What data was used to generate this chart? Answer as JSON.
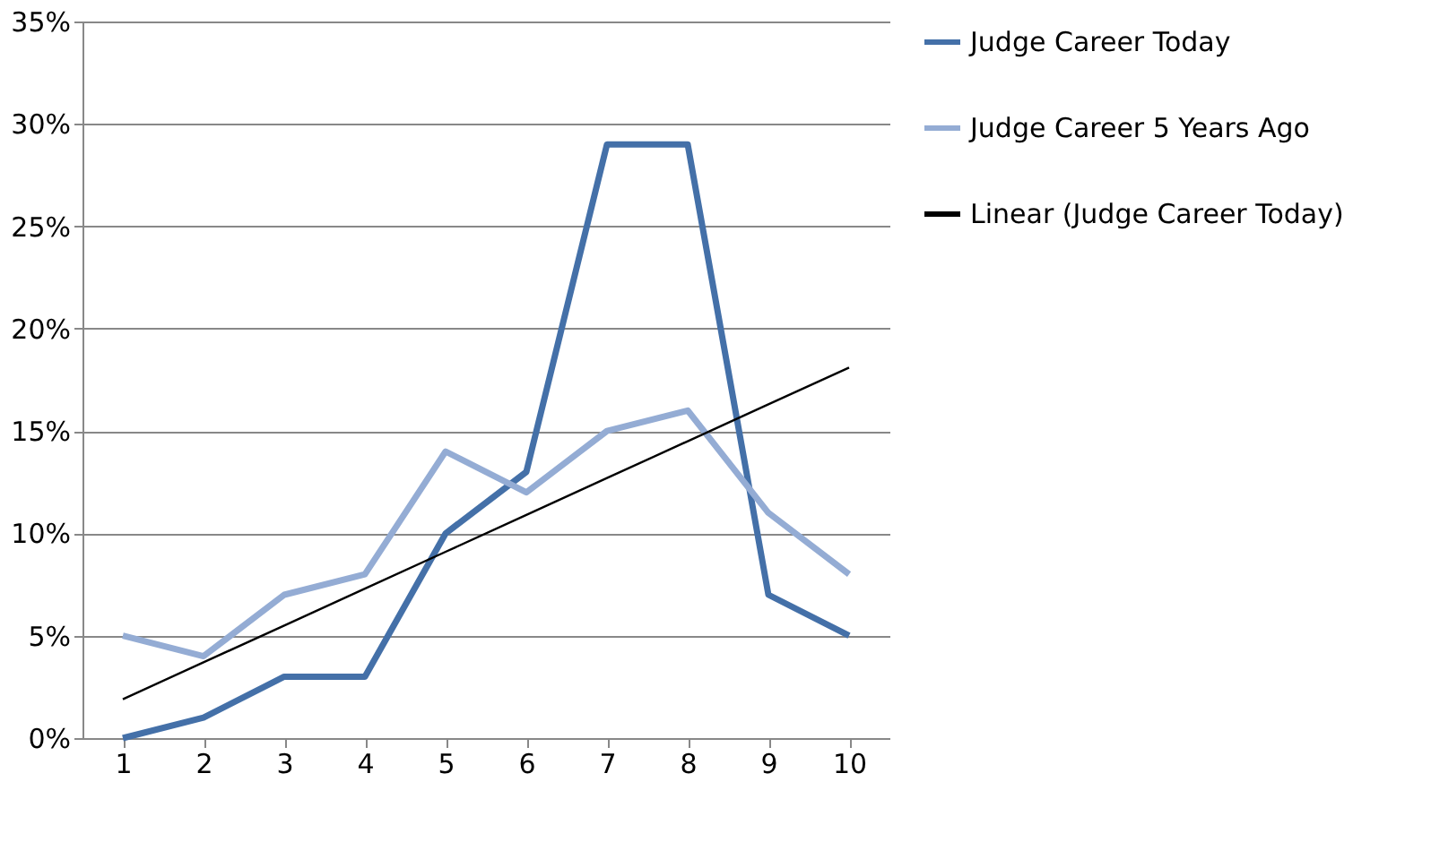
{
  "chart_data": {
    "type": "line",
    "categories": [
      "1",
      "2",
      "3",
      "4",
      "5",
      "6",
      "7",
      "8",
      "9",
      "10"
    ],
    "series": [
      {
        "name": "Judge Career Today",
        "color": "#4470a8",
        "values": [
          0,
          1,
          3,
          3,
          10,
          13,
          29,
          29,
          7,
          5
        ]
      },
      {
        "name": "Judge Career 5 Years Ago",
        "color": "#94acd4",
        "values": [
          5,
          4,
          7,
          8,
          14,
          12,
          15,
          16,
          11,
          8
        ]
      },
      {
        "name": "Linear (Judge Career Today)",
        "color": "#000000",
        "values": [
          1.9,
          3.7,
          5.5,
          7.3,
          9.1,
          10.9,
          12.7,
          14.5,
          16.3,
          18.1
        ]
      }
    ],
    "ylim": [
      0,
      35
    ],
    "yticks": [
      {
        "value": 0,
        "label": "0%"
      },
      {
        "value": 5,
        "label": "5%"
      },
      {
        "value": 10,
        "label": "10%"
      },
      {
        "value": 15,
        "label": "15%"
      },
      {
        "value": 20,
        "label": "20%"
      },
      {
        "value": 25,
        "label": "25%"
      },
      {
        "value": 30,
        "label": "30%"
      },
      {
        "value": 35,
        "label": "35%"
      }
    ],
    "grid": "y",
    "legend": "right",
    "marker": "none",
    "line_style": "solid"
  }
}
